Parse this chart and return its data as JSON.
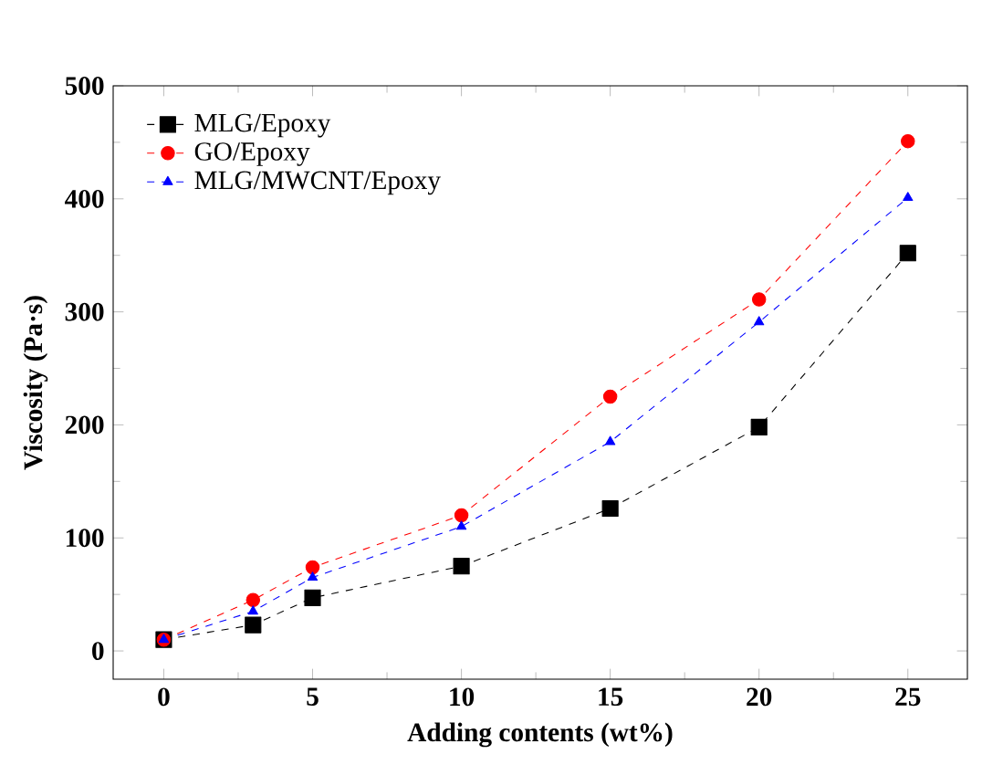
{
  "chart_data": {
    "type": "line",
    "xlabel": "Adding contents (wt%)",
    "ylabel": "Viscosity (Pa·s)",
    "x": [
      0,
      3,
      5,
      10,
      15,
      20,
      25
    ],
    "series": [
      {
        "name": "MLG/Epoxy",
        "color": "#000000",
        "marker": "square",
        "values": [
          10,
          23,
          47,
          75,
          126,
          198,
          352
        ]
      },
      {
        "name": "GO/Epoxy",
        "color": "#ff0000",
        "marker": "circle",
        "values": [
          10,
          45,
          74,
          120,
          225,
          311,
          451
        ]
      },
      {
        "name": "MLG/MWCNT/Epoxy",
        "color": "#0000ff",
        "marker": "triangle",
        "values": [
          10,
          35,
          65,
          110,
          185,
          291,
          401
        ]
      }
    ],
    "xlim": [
      -1.7,
      27
    ],
    "ylim": [
      -25,
      500
    ],
    "xticks": [
      0,
      5,
      10,
      15,
      20,
      25
    ],
    "yticks": [
      0,
      100,
      200,
      300,
      400,
      500
    ],
    "line_style": "dashed",
    "legend": "top left",
    "grid": false
  }
}
